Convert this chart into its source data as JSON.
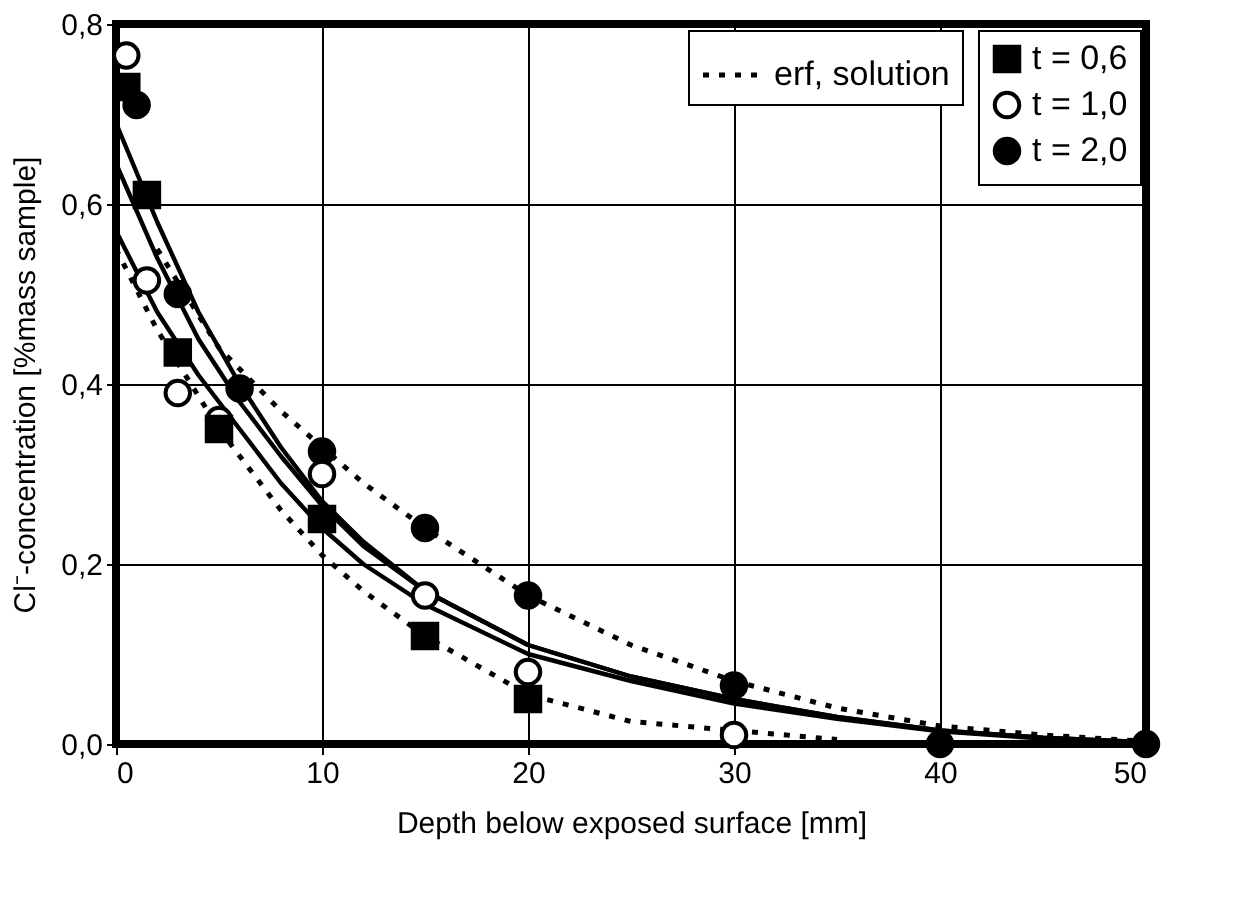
{
  "chart_data": {
    "type": "scatter",
    "xlabel": "Depth below exposed surface [mm]",
    "ylabel": "Cl⁻-concentration [%mass sample]",
    "xlim": [
      0,
      50
    ],
    "xticks": [
      0,
      10,
      20,
      30,
      40,
      50
    ],
    "ylim": [
      0,
      0.8
    ],
    "yticks": [
      {
        "value": 0,
        "label": "0,0"
      },
      {
        "value": 0.2,
        "label": "0,2"
      },
      {
        "value": 0.4,
        "label": "0,4"
      },
      {
        "value": 0.6,
        "label": "0,6"
      },
      {
        "value": 0.8,
        "label": "0,8"
      }
    ],
    "grid": true,
    "legend": "top right",
    "series": [
      {
        "name": "t = 0,6",
        "marker": "square",
        "color": "#000000",
        "x": [
          0.5,
          1.5,
          3,
          5,
          10,
          15,
          20
        ],
        "values": [
          0.73,
          0.61,
          0.435,
          0.35,
          0.25,
          0.12,
          0.05
        ]
      },
      {
        "name": "t = 1,0",
        "marker": "circle",
        "color": "#ffffff",
        "x": [
          0.5,
          1.5,
          3,
          5,
          10,
          15,
          20,
          30
        ],
        "values": [
          0.765,
          0.515,
          0.39,
          0.36,
          0.3,
          0.165,
          0.08,
          0.01
        ]
      },
      {
        "name": "t = 2,0",
        "marker": "circle",
        "color": "#000000",
        "x": [
          1,
          3,
          6,
          10,
          15,
          20,
          30,
          40,
          50
        ],
        "values": [
          0.71,
          0.5,
          0.395,
          0.325,
          0.24,
          0.165,
          0.065,
          0,
          0
        ]
      },
      {
        "type": "line",
        "line_style": "solid",
        "color": "#000000",
        "x": [
          0,
          2,
          4,
          6,
          8,
          10,
          12,
          15,
          20,
          25,
          30,
          35,
          40,
          45,
          50
        ],
        "values": [
          0.69,
          0.58,
          0.48,
          0.4,
          0.33,
          0.27,
          0.225,
          0.17,
          0.11,
          0.075,
          0.05,
          0.03,
          0.015,
          0.007,
          0.002
        ]
      },
      {
        "type": "line",
        "line_style": "solid",
        "color": "#000000",
        "x": [
          0,
          2,
          4,
          6,
          8,
          10,
          12,
          15,
          20,
          25,
          30,
          35,
          40,
          45,
          50
        ],
        "values": [
          0.645,
          0.54,
          0.45,
          0.38,
          0.32,
          0.265,
          0.22,
          0.17,
          0.11,
          0.075,
          0.05,
          0.03,
          0.015,
          0.007,
          0.002
        ]
      },
      {
        "type": "line",
        "line_style": "solid",
        "color": "#000000",
        "x": [
          0,
          2,
          4,
          6,
          8,
          10,
          12,
          15,
          20,
          25,
          30,
          35,
          40,
          45,
          50
        ],
        "values": [
          0.57,
          0.48,
          0.41,
          0.35,
          0.29,
          0.24,
          0.2,
          0.155,
          0.1,
          0.07,
          0.045,
          0.028,
          0.014,
          0.006,
          0.002
        ]
      },
      {
        "name": "erf, solution",
        "type": "line",
        "line_style": "dotted",
        "color": "#000000",
        "x": [
          2,
          5,
          8,
          10,
          12,
          15,
          20,
          25,
          30,
          35,
          40,
          45,
          50
        ],
        "values": [
          0.55,
          0.44,
          0.37,
          0.33,
          0.29,
          0.24,
          0.165,
          0.11,
          0.07,
          0.04,
          0.02,
          0.01,
          0.003
        ]
      },
      {
        "type": "line",
        "line_style": "dotted",
        "color": "#000000",
        "x": [
          0,
          2,
          5,
          8,
          10,
          12,
          15,
          20,
          25,
          30,
          35
        ],
        "values": [
          0.55,
          0.46,
          0.35,
          0.26,
          0.21,
          0.17,
          0.12,
          0.055,
          0.025,
          0.015,
          0.005
        ]
      }
    ]
  }
}
